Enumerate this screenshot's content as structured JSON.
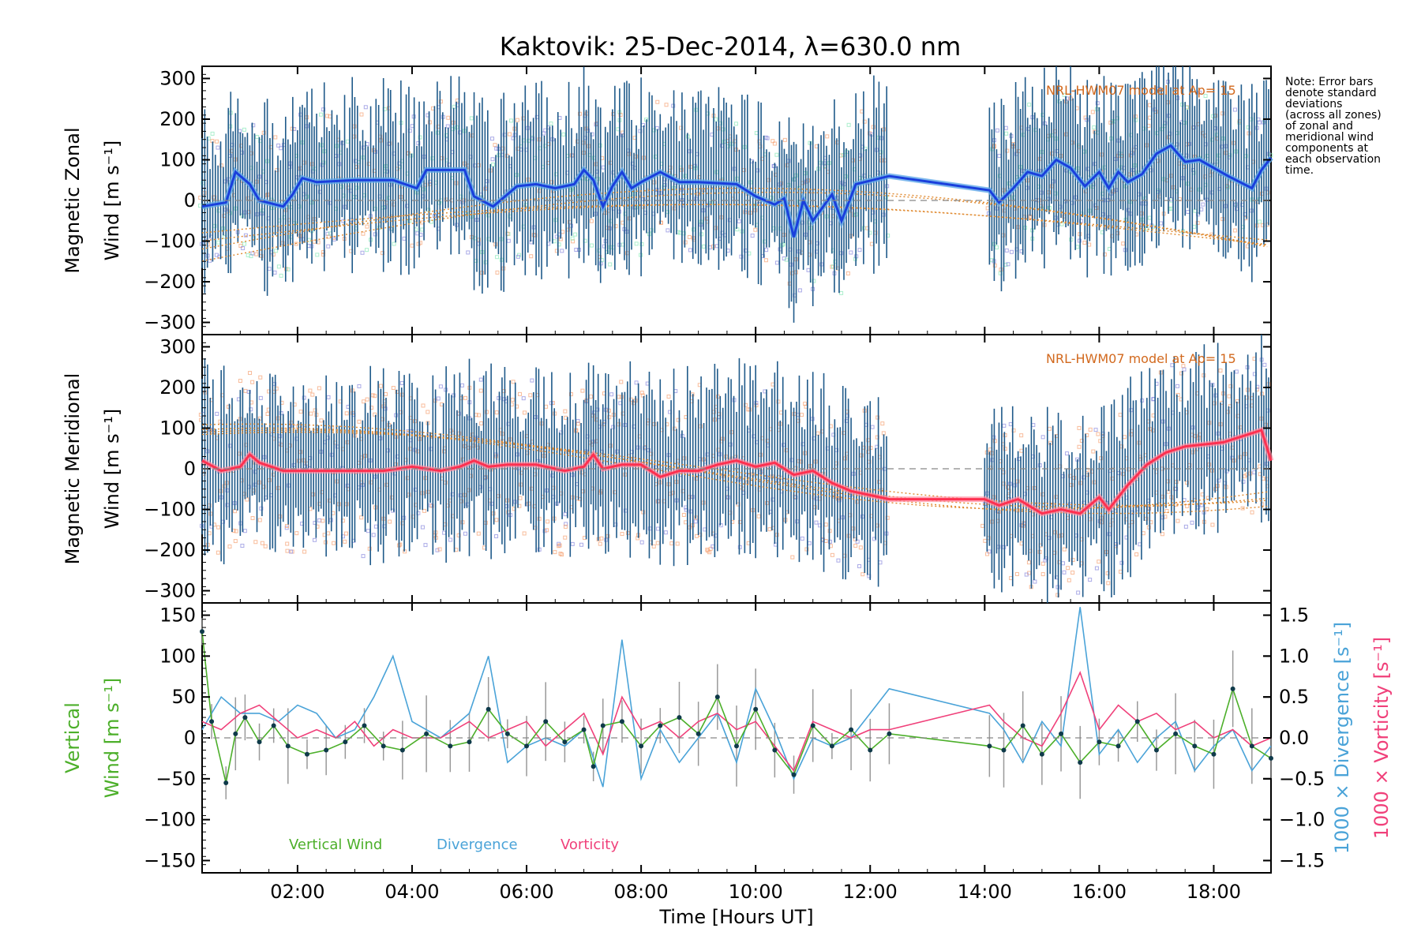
{
  "title": "Kaktovik: 25-Dec-2014, λ=630.0 nm",
  "note": [
    "Note: Error bars",
    "denote standard",
    "deviations",
    "(across all zones)",
    "of zonal and",
    "meridional wind",
    "components at",
    "each observation",
    "time."
  ],
  "xlabel": "Time [Hours UT]",
  "x_ticks": [
    "02:00",
    "04:00",
    "06:00",
    "08:00",
    "10:00",
    "12:00",
    "14:00",
    "16:00",
    "18:00"
  ],
  "model_label": "NRL-HWM07 model at Ap= 15",
  "panel1": {
    "ylabel_line1": "Magnetic Zonal",
    "ylabel_line2": "Wind [m s⁻¹]"
  },
  "panel2": {
    "ylabel_line1": "Magnetic Meridional",
    "ylabel_line2": "Wind [m s⁻¹]"
  },
  "panel3": {
    "ylabel_line1": "Vertical",
    "ylabel_line2": "Wind [m s⁻¹]",
    "right_label1": "1000 × Divergence [s⁻¹]",
    "right_label2": "1000 × Vorticity [s⁻¹]",
    "legend": [
      "Vertical Wind",
      "Divergence",
      "Vorticity"
    ]
  },
  "colors": {
    "zonal": "#1a3fdc",
    "zonal_light": "#5fa8e8",
    "meridional": "#ff3050",
    "vertical": "#4caf2a",
    "divergence": "#4aa3d8",
    "vorticity": "#f0407a",
    "errorbar": "#1f5a8a",
    "model": "#e08a30",
    "scatter_orange": "#f5a070",
    "scatter_purple": "#8888dd",
    "scatter_green": "#88e8b8"
  },
  "chart_data": [
    {
      "type": "line",
      "title": "Kaktovik: 25-Dec-2014, λ=630.0 nm",
      "ylabel": "Magnetic Zonal Wind [m s⁻¹]",
      "xlabel": "",
      "xlim": [
        "00:20",
        "19:00"
      ],
      "ylim": [
        -330,
        330
      ],
      "y_ticks": [
        -300,
        -200,
        -100,
        0,
        100,
        200,
        300
      ],
      "series": [
        {
          "x": [
            "00:20",
            "00:45",
            "00:55",
            "01:10",
            "01:20",
            "01:45",
            "01:55",
            "02:05",
            "02:20",
            "03:00",
            "03:25",
            "03:40",
            "04:05",
            "04:15",
            "04:35",
            "04:55",
            "05:05",
            "05:25",
            "05:50",
            "06:10",
            "06:30",
            "06:50",
            "07:00",
            "07:10",
            "07:20",
            "07:30",
            "07:40",
            "07:50",
            "08:00",
            "08:20",
            "08:40",
            "09:00",
            "09:40",
            "10:00",
            "10:20",
            "10:30",
            "10:40",
            "10:50",
            "11:00",
            "11:20",
            "11:30",
            "11:45",
            "12:20",
            "14:05",
            "14:15",
            "14:30",
            "14:45",
            "15:00",
            "15:15",
            "15:30",
            "15:45",
            "16:00",
            "16:10",
            "16:20",
            "16:30",
            "16:45",
            "17:00",
            "17:15",
            "17:30",
            "17:45",
            "18:00",
            "18:15",
            "18:40",
            "18:50",
            "19:00"
          ],
          "values": [
            -15,
            -5,
            70,
            40,
            0,
            -15,
            15,
            55,
            45,
            50,
            50,
            50,
            30,
            75,
            75,
            75,
            10,
            -15,
            35,
            40,
            30,
            40,
            75,
            50,
            -15,
            35,
            70,
            30,
            45,
            70,
            45,
            45,
            40,
            10,
            -10,
            5,
            -90,
            0,
            -50,
            15,
            -50,
            40,
            60,
            25,
            -5,
            30,
            70,
            60,
            100,
            80,
            35,
            70,
            30,
            70,
            45,
            65,
            115,
            135,
            95,
            100,
            80,
            60,
            30,
            75,
            105
          ]
        }
      ],
      "model_lines": 4,
      "hline": 0
    },
    {
      "type": "line",
      "ylabel": "Magnetic Meridional Wind [m s⁻¹]",
      "xlim": [
        "00:20",
        "19:00"
      ],
      "ylim": [
        -330,
        330
      ],
      "y_ticks": [
        -300,
        -200,
        -100,
        0,
        100,
        200,
        300
      ],
      "series": [
        {
          "x": [
            "00:20",
            "00:40",
            "01:00",
            "01:10",
            "01:20",
            "01:45",
            "02:30",
            "03:30",
            "04:00",
            "04:30",
            "04:50",
            "05:05",
            "05:20",
            "05:40",
            "06:10",
            "06:40",
            "07:00",
            "07:10",
            "07:20",
            "07:40",
            "08:00",
            "08:20",
            "08:40",
            "09:00",
            "09:20",
            "09:40",
            "10:00",
            "10:20",
            "10:40",
            "11:00",
            "11:20",
            "11:40",
            "12:00",
            "12:20",
            "14:00",
            "14:15",
            "14:35",
            "15:00",
            "15:20",
            "15:40",
            "16:00",
            "16:10",
            "16:30",
            "16:50",
            "17:10",
            "17:30",
            "17:50",
            "18:10",
            "18:30",
            "18:50",
            "19:00"
          ],
          "values": [
            20,
            -5,
            5,
            35,
            15,
            -5,
            -5,
            -5,
            5,
            -5,
            5,
            20,
            5,
            10,
            10,
            -5,
            5,
            35,
            0,
            10,
            10,
            -20,
            -5,
            -5,
            10,
            20,
            5,
            15,
            -15,
            -5,
            -35,
            -55,
            -65,
            -75,
            -75,
            -90,
            -75,
            -110,
            -100,
            -110,
            -70,
            -100,
            -40,
            10,
            40,
            55,
            60,
            65,
            80,
            95,
            20
          ]
        }
      ],
      "model_lines": 4,
      "hline": 0
    },
    {
      "type": "line",
      "ylabel": "Vertical Wind [m s⁻¹]",
      "xlabel": "Time [Hours UT]",
      "xlim": [
        "00:20",
        "19:00"
      ],
      "ylim": [
        -165,
        165
      ],
      "y_ticks": [
        -150,
        -100,
        -50,
        0,
        50,
        100,
        150
      ],
      "y2_ticks": [
        -1.5,
        -1.0,
        -0.5,
        0.0,
        0.5,
        1.0,
        1.5
      ],
      "y2lim": [
        -1.65,
        1.65
      ],
      "series": [
        {
          "name": "Vertical Wind",
          "axis": "left",
          "x": [
            "00:20",
            "00:30",
            "00:45",
            "00:55",
            "01:05",
            "01:20",
            "01:35",
            "01:50",
            "02:10",
            "02:30",
            "02:50",
            "03:10",
            "03:30",
            "03:50",
            "04:15",
            "04:40",
            "05:00",
            "05:20",
            "05:40",
            "06:00",
            "06:20",
            "06:40",
            "07:00",
            "07:10",
            "07:20",
            "07:40",
            "08:00",
            "08:20",
            "08:40",
            "09:00",
            "09:20",
            "09:40",
            "10:00",
            "10:20",
            "10:40",
            "11:00",
            "11:20",
            "11:40",
            "12:00",
            "12:20",
            "14:05",
            "14:20",
            "14:40",
            "15:00",
            "15:20",
            "15:40",
            "16:00",
            "16:20",
            "16:40",
            "17:00",
            "17:20",
            "17:40",
            "18:00",
            "18:20",
            "18:40",
            "19:00"
          ],
          "values": [
            130,
            20,
            -55,
            5,
            25,
            -5,
            15,
            -10,
            -20,
            -15,
            -5,
            15,
            -10,
            -15,
            5,
            -10,
            -5,
            35,
            5,
            -10,
            20,
            -5,
            10,
            -35,
            15,
            20,
            -10,
            15,
            25,
            5,
            50,
            -10,
            35,
            -15,
            -45,
            15,
            -10,
            10,
            -15,
            5,
            -10,
            -15,
            15,
            -20,
            5,
            -30,
            -5,
            -10,
            20,
            -15,
            5,
            -10,
            -20,
            60,
            -10,
            -25
          ]
        },
        {
          "name": "Divergence",
          "axis": "right",
          "x": [
            "00:20",
            "00:40",
            "01:00",
            "01:20",
            "01:40",
            "02:00",
            "02:20",
            "02:40",
            "03:00",
            "03:20",
            "03:40",
            "04:00",
            "04:30",
            "05:00",
            "05:20",
            "05:40",
            "06:00",
            "06:20",
            "06:40",
            "07:00",
            "07:20",
            "07:40",
            "08:00",
            "08:20",
            "08:40",
            "09:00",
            "09:20",
            "09:40",
            "10:00",
            "10:20",
            "10:40",
            "11:00",
            "11:20",
            "11:40",
            "12:00",
            "12:20",
            "14:05",
            "14:20",
            "14:40",
            "15:00",
            "15:20",
            "15:40",
            "16:00",
            "16:20",
            "16:40",
            "17:00",
            "17:20",
            "17:40",
            "18:00",
            "18:20",
            "18:40",
            "19:00"
          ],
          "values": [
            0.1,
            0.5,
            0.3,
            0.3,
            0.2,
            0.4,
            0.3,
            0.0,
            0.1,
            0.5,
            1.0,
            0.2,
            0.0,
            0.3,
            1.0,
            -0.3,
            -0.1,
            0.0,
            -0.1,
            0.1,
            -0.6,
            1.2,
            -0.5,
            0.1,
            -0.3,
            0.0,
            0.3,
            -0.3,
            0.6,
            0.1,
            -0.5,
            0.0,
            -0.1,
            0.0,
            0.3,
            0.6,
            0.3,
            0.1,
            -0.3,
            0.2,
            -0.1,
            1.6,
            -0.2,
            0.1,
            -0.3,
            0.0,
            0.2,
            -0.4,
            -0.1,
            0.1,
            -0.4,
            -0.1
          ]
        },
        {
          "name": "Vorticity",
          "axis": "right",
          "x": [
            "00:20",
            "00:40",
            "01:00",
            "01:20",
            "01:40",
            "02:00",
            "02:20",
            "02:40",
            "03:00",
            "03:20",
            "03:40",
            "04:00",
            "04:30",
            "05:00",
            "05:20",
            "05:40",
            "06:00",
            "06:20",
            "06:40",
            "07:00",
            "07:20",
            "07:40",
            "08:00",
            "08:20",
            "08:40",
            "09:00",
            "09:20",
            "09:40",
            "10:00",
            "10:20",
            "10:40",
            "11:00",
            "11:20",
            "11:40",
            "12:00",
            "12:20",
            "14:05",
            "14:20",
            "14:40",
            "15:00",
            "15:20",
            "15:40",
            "16:00",
            "16:20",
            "16:40",
            "17:00",
            "17:20",
            "17:40",
            "18:00",
            "18:20",
            "18:40",
            "19:00"
          ],
          "values": [
            0.2,
            0.1,
            0.3,
            0.4,
            0.2,
            0.0,
            0.1,
            0.0,
            0.2,
            -0.1,
            0.1,
            0.0,
            0.0,
            0.2,
            0.0,
            0.1,
            0.2,
            -0.1,
            0.1,
            0.3,
            -0.2,
            0.5,
            0.1,
            0.2,
            0.0,
            0.2,
            0.3,
            0.1,
            0.2,
            -0.1,
            -0.4,
            0.2,
            0.1,
            0.0,
            0.1,
            0.1,
            0.4,
            0.2,
            0.0,
            -0.1,
            0.3,
            0.8,
            0.1,
            0.4,
            0.2,
            0.3,
            0.1,
            0.2,
            0.0,
            0.1,
            -0.1,
            0.0
          ]
        }
      ],
      "legend": [
        "Vertical Wind",
        "Divergence",
        "Vorticity"
      ],
      "hline": 0
    }
  ]
}
